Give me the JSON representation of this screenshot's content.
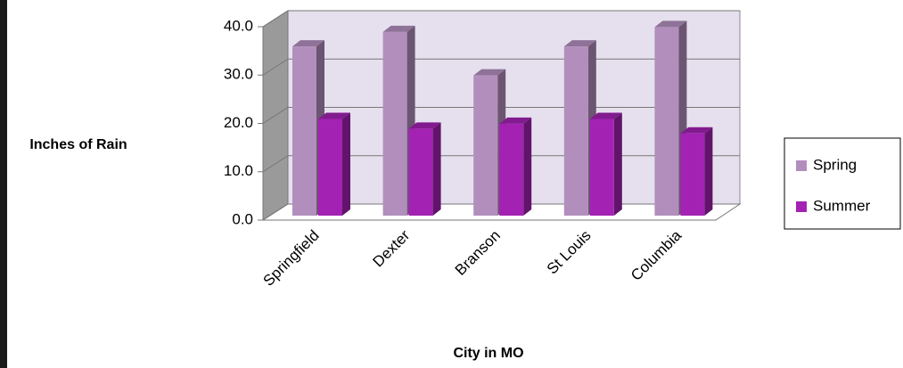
{
  "chart_data": {
    "type": "bar",
    "y_label": "Inches of Rain",
    "x_label": "City in MO",
    "categories": [
      "Springfield",
      "Dexter",
      "Branson",
      "St Louis",
      "Columbia"
    ],
    "series": [
      {
        "name": "Spring",
        "color": "#b28ebd",
        "values": [
          35,
          38,
          29,
          35,
          39
        ]
      },
      {
        "name": "Summer",
        "color": "#a322b3",
        "values": [
          20,
          18,
          19,
          20,
          17
        ]
      }
    ],
    "ylim": [
      0,
      40
    ],
    "yticks": [
      {
        "value": 0,
        "label": "0.0"
      },
      {
        "value": 10,
        "label": "10.0"
      },
      {
        "value": 20,
        "label": "20.0"
      },
      {
        "value": 30,
        "label": "30.0"
      },
      {
        "value": 40,
        "label": "40.0"
      }
    ],
    "grid": true,
    "legend": "right"
  }
}
